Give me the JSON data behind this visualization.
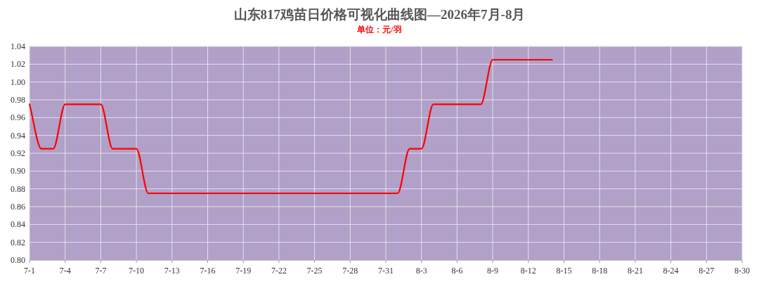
{
  "chart_data": {
    "type": "line",
    "title": "山东817鸡苗日价格可视化曲线图—2026年7月-8月",
    "subtitle": "单位：元/羽",
    "categories": [
      "7-1",
      null,
      null,
      "7-4",
      null,
      null,
      "7-7",
      null,
      null,
      "7-10",
      null,
      null,
      "7-13",
      null,
      null,
      "7-16",
      null,
      null,
      "7-19",
      null,
      null,
      "7-22",
      null,
      null,
      "7-25",
      null,
      null,
      "7-28",
      null,
      null,
      "7-31",
      null,
      null,
      "8-3",
      null,
      null,
      "8-6",
      null,
      null,
      "8-9",
      null,
      null,
      "8-12",
      null,
      null,
      "8-15",
      null,
      null,
      "8-18",
      null,
      null,
      "8-21",
      null,
      null,
      "8-24",
      null,
      null,
      "8-27",
      null,
      null,
      "8-30"
    ],
    "series": [
      {
        "color": "#ff0000",
        "values": [
          0.975,
          0.925,
          0.925,
          0.975,
          0.975,
          0.975,
          0.975,
          0.925,
          0.925,
          0.925,
          0.875,
          0.875,
          0.875,
          0.875,
          0.875,
          0.875,
          0.875,
          0.875,
          0.875,
          0.875,
          0.875,
          0.875,
          0.875,
          0.875,
          0.875,
          0.875,
          0.875,
          0.875,
          0.875,
          0.875,
          0.875,
          0.875,
          0.925,
          0.925,
          0.975,
          0.975,
          0.975,
          0.975,
          0.975,
          1.025,
          1.025,
          1.025,
          1.025,
          1.025,
          1.025,
          null,
          null,
          null,
          null,
          null,
          null,
          null,
          null,
          null,
          null,
          null,
          null,
          null,
          null,
          null,
          null
        ]
      }
    ],
    "ylim": [
      0.8,
      1.04
    ],
    "yticks": [
      {
        "value": 0.8,
        "label": "0.80"
      },
      {
        "value": 0.82,
        "label": "0.82"
      },
      {
        "value": 0.84,
        "label": "0.84"
      },
      {
        "value": 0.86,
        "label": "0.86"
      },
      {
        "value": 0.88,
        "label": "0.88"
      },
      {
        "value": 0.9,
        "label": "0.90"
      },
      {
        "value": 0.92,
        "label": "0.92"
      },
      {
        "value": 0.94,
        "label": "0.94"
      },
      {
        "value": 0.96,
        "label": "0.96"
      },
      {
        "value": 0.98,
        "label": "0.98"
      },
      {
        "value": 1.0,
        "label": "1.00"
      },
      {
        "value": 1.02,
        "label": "1.02"
      },
      {
        "value": 1.04,
        "label": "1.04"
      }
    ],
    "grid": true,
    "line_style": "solid",
    "marker": "none"
  }
}
